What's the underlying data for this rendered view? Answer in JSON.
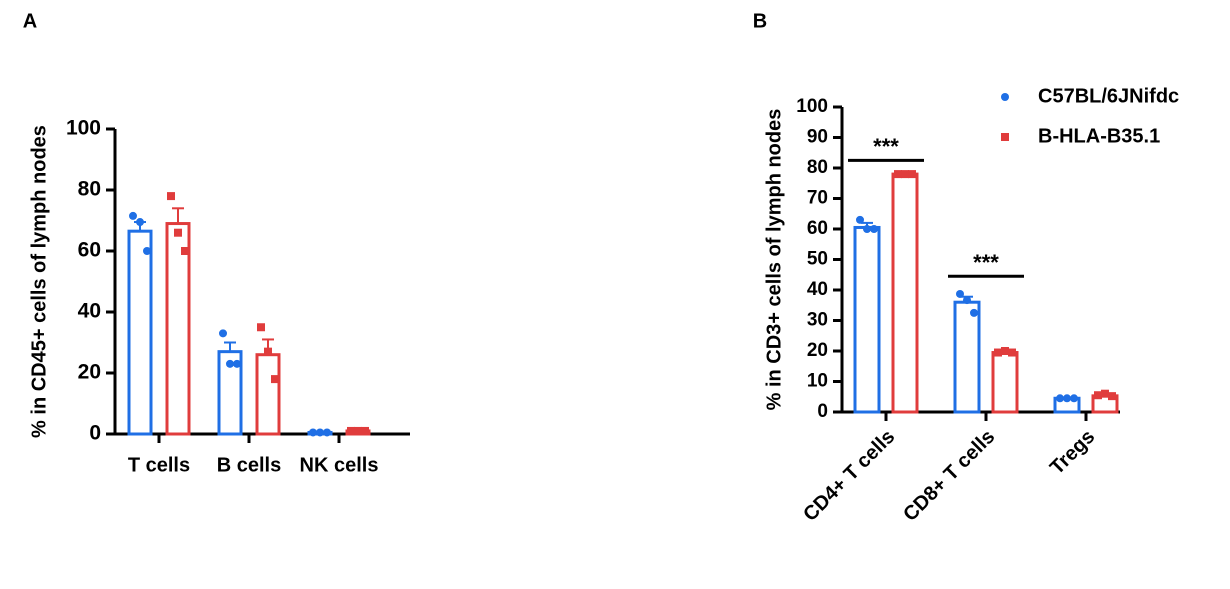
{
  "chart_data": [
    {
      "type": "bar",
      "label": "A",
      "ylabel": "% in CD45+ cells of lymph nodes",
      "categories": [
        "T cells",
        "B cells",
        "NK cells"
      ],
      "ylim": [
        0,
        100
      ],
      "yticks": [
        0,
        20,
        40,
        60,
        80,
        100
      ],
      "series": [
        {
          "color": "#1f6fe5",
          "marker": "circle",
          "values": [
            66.5,
            27,
            0.5
          ],
          "errors": [
            3,
            3,
            0.1
          ],
          "points": [
            [
              71.5,
              69.5,
              60
            ],
            [
              33,
              23,
              23
            ],
            [
              0.5,
              0.5,
              0.5
            ]
          ]
        },
        {
          "color": "#e03c3c",
          "marker": "square",
          "values": [
            69,
            26,
            1
          ],
          "errors": [
            5,
            5,
            0.1
          ],
          "points": [
            [
              78,
              66,
              60
            ],
            [
              35,
              27,
              18
            ],
            [
              1,
              1,
              1
            ]
          ]
        }
      ]
    },
    {
      "type": "bar",
      "label": "B",
      "ylabel": "% in CD3+ cells of lymph nodes",
      "categories": [
        "CD4+ T cells",
        "CD8+ T cells",
        "Tregs"
      ],
      "ylim": [
        0,
        100
      ],
      "yticks": [
        0,
        10,
        20,
        30,
        40,
        50,
        60,
        70,
        80,
        90,
        100
      ],
      "legend": true,
      "series": [
        {
          "name": "C57BL/6JNifdc",
          "color": "#1f6fe5",
          "marker": "circle",
          "values": [
            60.5,
            36,
            4.5
          ],
          "errors": [
            1.5,
            1.8,
            0.1
          ],
          "points": [
            [
              63,
              60,
              60
            ],
            [
              38.7,
              36.7,
              32.5
            ],
            [
              4.5,
              4.5,
              4.5
            ]
          ]
        },
        {
          "name": "B-HLA-B35.1",
          "color": "#e03c3c",
          "marker": "square",
          "values": [
            78,
            19.5,
            5.3
          ],
          "errors": [
            0.3,
            0.3,
            0.4
          ],
          "points": [
            [
              78,
              78,
              78
            ],
            [
              19.5,
              20,
              19.5
            ],
            [
              5.5,
              6,
              5.2
            ]
          ]
        }
      ],
      "annotations": [
        {
          "text": "***",
          "y": 82.5
        },
        {
          "text": "***",
          "y": 44.5
        }
      ]
    }
  ]
}
